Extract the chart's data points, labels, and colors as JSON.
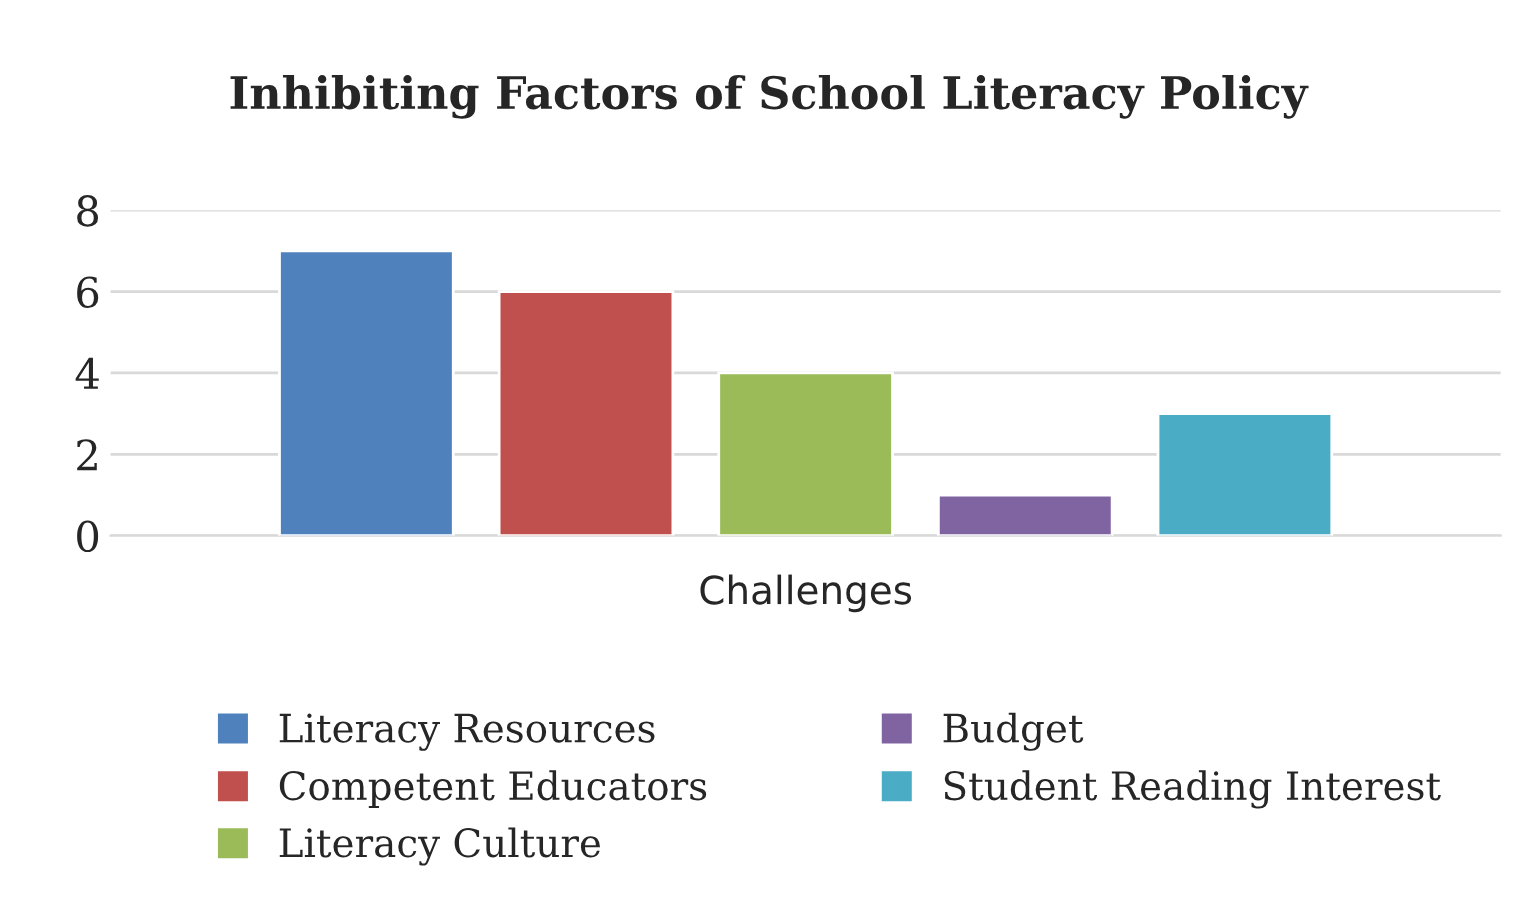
{
  "chart_data": {
    "type": "bar",
    "title": "Inhibiting Factors of School Literacy Policy",
    "categories": [
      "Challenges"
    ],
    "series": [
      {
        "name": "Literacy Resources",
        "color": "#4f81bd",
        "values": [
          7
        ]
      },
      {
        "name": "Competent Educators",
        "color": "#c0504d",
        "values": [
          6
        ]
      },
      {
        "name": "Literacy Culture",
        "color": "#9bbb59",
        "values": [
          4
        ]
      },
      {
        "name": "Budget",
        "color": "#8064a2",
        "values": [
          1
        ]
      },
      {
        "name": "Student Reading Interest",
        "color": "#4bacc6",
        "values": [
          3
        ]
      }
    ],
    "ylim": [
      0,
      8
    ],
    "yticks": [
      0,
      2,
      4,
      6,
      8
    ],
    "grid": "y",
    "legend": "bottom"
  }
}
